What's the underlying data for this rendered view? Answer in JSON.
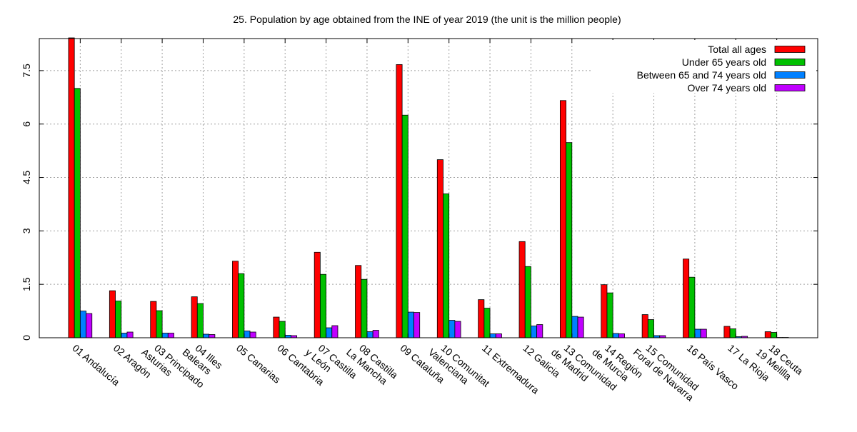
{
  "chart_data": {
    "type": "bar",
    "title": "25. Population by age obtained from the INE of year 2019 (the unit is the million people)",
    "xlabel": "",
    "ylabel": "",
    "ylim": [
      0,
      8.4
    ],
    "yticks": [
      0,
      1.5,
      3,
      4.5,
      6,
      7.5
    ],
    "ytick_labels": [
      "0",
      "1.5",
      "3",
      "4.5",
      "6",
      "7.5"
    ],
    "grid": true,
    "legend_position": "top-right",
    "categories": [
      "01 Andalucía",
      "02 Aragón",
      "03 Principado\nAsturias",
      "04 Illes\nBalears",
      "05 Canarias",
      "06 Cantabria",
      "07 Castilla\ny León",
      "08 Castilla\nLa Mancha",
      "09 Cataluña",
      "10 Comunitat\nValenciana",
      "11 Extremadura",
      "12 Galicia",
      "13 Comunidad\nde Madrid",
      "14 Región\nde Murcia",
      "15 Comunidad\nForal de Navarra",
      "16 País Vasco",
      "17 La Rioja",
      "18 Ceuta\n19 Melilla"
    ],
    "series": [
      {
        "name": "Total all ages",
        "color": "#ff0000",
        "values": [
          8.42,
          1.32,
          1.02,
          1.15,
          2.15,
          0.58,
          2.4,
          2.03,
          7.67,
          5.0,
          1.07,
          2.7,
          6.66,
          1.49,
          0.65,
          2.21,
          0.32,
          0.17
        ]
      },
      {
        "name": "Under 65 years old",
        "color": "#00c000",
        "values": [
          7.0,
          1.03,
          0.76,
          0.96,
          1.8,
          0.46,
          1.78,
          1.64,
          6.25,
          4.04,
          0.83,
          2.0,
          5.48,
          1.26,
          0.51,
          1.7,
          0.25,
          0.15
        ]
      },
      {
        "name": "Between 65 and 74 years old",
        "color": "#0080ff",
        "values": [
          0.75,
          0.13,
          0.13,
          0.1,
          0.19,
          0.07,
          0.28,
          0.17,
          0.72,
          0.49,
          0.11,
          0.33,
          0.6,
          0.12,
          0.06,
          0.24,
          0.03,
          0.01
        ]
      },
      {
        "name": "Over 74 years old",
        "color": "#c000ff",
        "values": [
          0.68,
          0.16,
          0.13,
          0.09,
          0.16,
          0.06,
          0.34,
          0.21,
          0.71,
          0.46,
          0.11,
          0.37,
          0.58,
          0.11,
          0.06,
          0.24,
          0.04,
          0.01
        ]
      }
    ]
  }
}
